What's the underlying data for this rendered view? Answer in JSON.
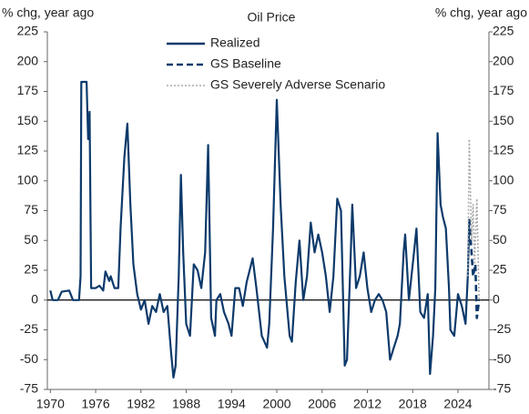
{
  "chart_data": {
    "type": "line",
    "title": "Oil Price",
    "ylabel": "% chg, year ago",
    "y2label": "% chg, year ago",
    "xlim": [
      1969.6,
      2028.1
    ],
    "xticks": [
      1970,
      1976,
      1982,
      1988,
      1994,
      2000,
      2006,
      2012,
      2018,
      2024
    ],
    "ylim": [
      -75,
      225
    ],
    "yticks": [
      -75,
      -50,
      -25,
      0,
      25,
      50,
      75,
      100,
      125,
      150,
      175,
      200,
      225
    ],
    "y2lim": [
      -75,
      225
    ],
    "y2ticks": [
      -75,
      -50,
      -25,
      0,
      25,
      50,
      75,
      100,
      125,
      150,
      175,
      200,
      225
    ],
    "grid": false,
    "legend": "top",
    "series": [
      {
        "name": "Realized",
        "color": "#0d3a6b",
        "style": "solid",
        "x": [
          1970,
          1970.3,
          1971,
          1971.5,
          1972.5,
          1973,
          1973.8,
          1974,
          1974.1,
          1974.8,
          1975,
          1975.2,
          1975.4,
          1976,
          1976.5,
          1977,
          1977.3,
          1977.8,
          1978,
          1978.5,
          1979,
          1979.3,
          1979.8,
          1980.2,
          1980.6,
          1981,
          1981.5,
          1982,
          1982.5,
          1983,
          1983.5,
          1984,
          1984.5,
          1985,
          1985.5,
          1986,
          1986.3,
          1986.6,
          1987,
          1987.3,
          1987.6,
          1988,
          1988.5,
          1989,
          1989.5,
          1990,
          1990.5,
          1990.9,
          1991.3,
          1991.8,
          1992,
          1992.5,
          1993,
          1993.6,
          1994,
          1994.5,
          1995,
          1995.5,
          1996,
          1996.8,
          1997.3,
          1998,
          1998.7,
          1999,
          1999.5,
          2000,
          2000.5,
          2001,
          2001.7,
          2002,
          2002.5,
          2003,
          2003.5,
          2004,
          2004.5,
          2005,
          2005.5,
          2006,
          2006.5,
          2007,
          2007.5,
          2008,
          2008.5,
          2009,
          2009.3,
          2009.8,
          2010,
          2010.5,
          2011,
          2011.5,
          2012,
          2012.5,
          2013,
          2013.5,
          2014,
          2014.5,
          2015,
          2015.5,
          2016,
          2016.3,
          2016.8,
          2017,
          2017.5,
          2018,
          2018.5,
          2019,
          2019.5,
          2020,
          2020.3,
          2020.7,
          2021,
          2021.3,
          2021.7,
          2022,
          2022.4,
          2022.8,
          2023,
          2023.5,
          2024,
          2024.5,
          2025,
          2025.3,
          2025.5
        ],
        "values": [
          8,
          0,
          0,
          7,
          8,
          0,
          0,
          20,
          183,
          183,
          135,
          158,
          10,
          10,
          12,
          8,
          24,
          16,
          20,
          10,
          10,
          60,
          120,
          148,
          80,
          30,
          5,
          -8,
          0,
          -20,
          -5,
          -10,
          5,
          -10,
          -5,
          -45,
          -65,
          -55,
          20,
          105,
          40,
          -20,
          -30,
          30,
          25,
          10,
          40,
          130,
          -15,
          -30,
          0,
          5,
          -10,
          -20,
          -30,
          10,
          10,
          -5,
          15,
          35,
          10,
          -30,
          -40,
          -20,
          60,
          168,
          80,
          20,
          -30,
          -35,
          15,
          50,
          0,
          20,
          65,
          40,
          55,
          40,
          20,
          -10,
          20,
          85,
          75,
          -55,
          -50,
          40,
          80,
          10,
          20,
          40,
          10,
          -10,
          0,
          5,
          0,
          -10,
          -50,
          -40,
          -30,
          -20,
          40,
          55,
          0,
          30,
          60,
          -10,
          -15,
          5,
          -62,
          -30,
          10,
          140,
          80,
          70,
          60,
          10,
          -25,
          -30,
          5,
          -5,
          -20,
          20,
          68
        ]
      },
      {
        "name": "GS Baseline",
        "color": "#0d3a6b",
        "style": "dashed",
        "x": [
          2025.5,
          2025.8,
          2026,
          2026.3,
          2026.5,
          2026.8
        ],
        "values": [
          68,
          40,
          20,
          30,
          -15,
          0
        ]
      },
      {
        "name": "GS Severely Adverse Scenario",
        "color": "#aaaaaa",
        "style": "dotted",
        "x": [
          2025.3,
          2025.5,
          2025.8,
          2026,
          2026.2,
          2026.5,
          2026.8,
          2027
        ],
        "values": [
          20,
          135,
          50,
          80,
          30,
          85,
          0,
          0
        ]
      }
    ]
  }
}
